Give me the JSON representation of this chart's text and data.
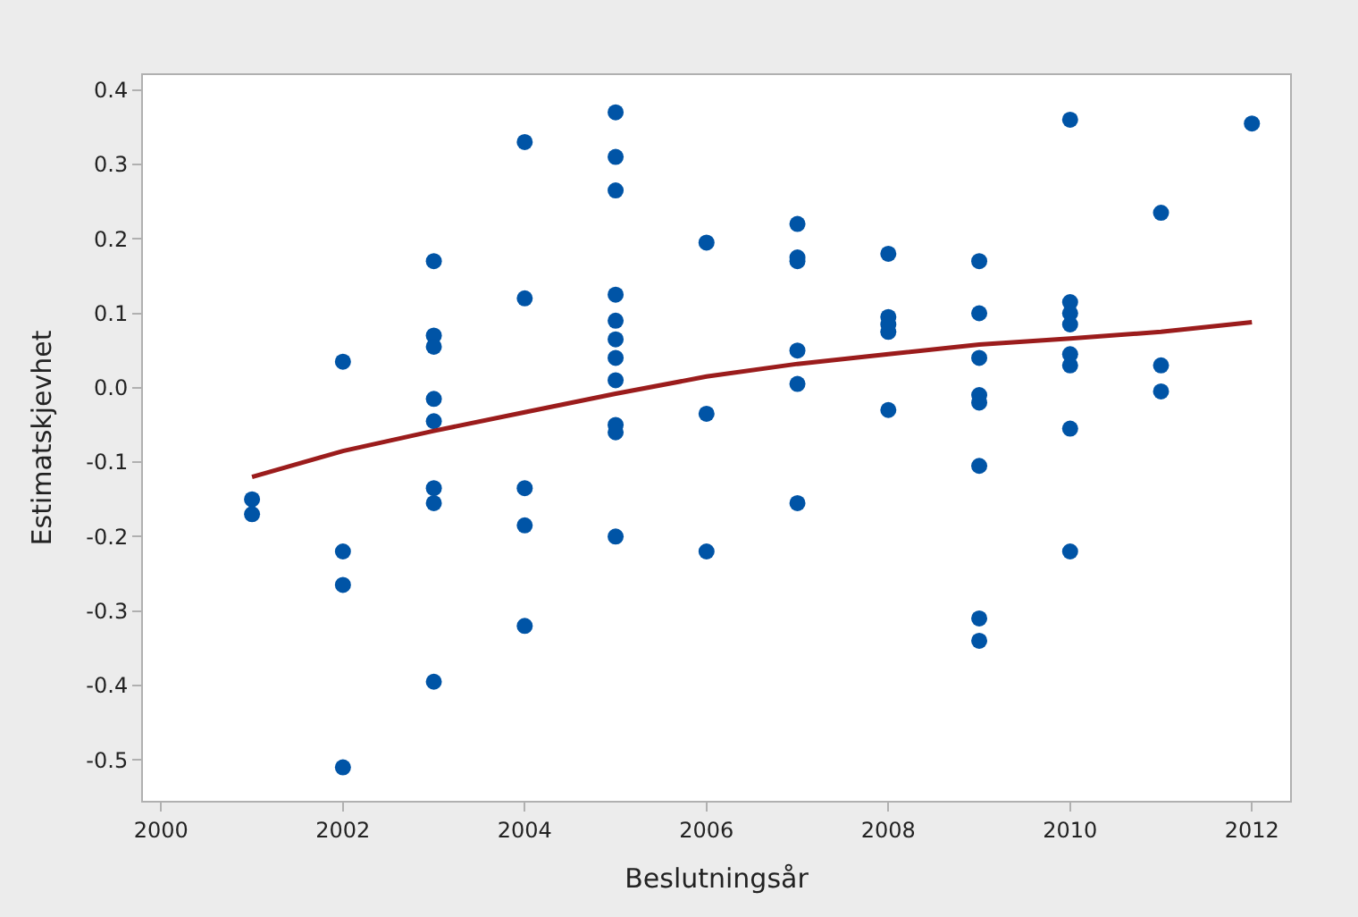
{
  "chart_data": {
    "type": "scatter",
    "xlabel": "Beslutningsår",
    "ylabel": "Estimatskjevhet",
    "xlim": [
      1999.8,
      2012.42
    ],
    "ylim": [
      -0.555,
      0.42
    ],
    "xticks": [
      2000,
      2002,
      2004,
      2006,
      2008,
      2010,
      2012
    ],
    "yticks": [
      -0.5,
      -0.4,
      -0.3,
      -0.2,
      -0.1,
      {
        "value": 0,
        "label": "0.0"
      },
      0.1,
      0.2,
      0.3,
      0.4
    ],
    "marker": "circle",
    "series": [
      {
        "color": "#0054a6",
        "x": [
          2001,
          2001,
          2002,
          2002,
          2002,
          2002,
          2003,
          2003,
          2003,
          2003,
          2003,
          2003,
          2003,
          2003,
          2004,
          2004,
          2004,
          2004,
          2004,
          2005,
          2005,
          2005,
          2005,
          2005,
          2005,
          2005,
          2005,
          2005,
          2005,
          2005,
          2006,
          2006,
          2006,
          2007,
          2007,
          2007,
          2007,
          2007,
          2007,
          2008,
          2008,
          2008,
          2008,
          2008,
          2009,
          2009,
          2009,
          2009,
          2009,
          2009,
          2009,
          2009,
          2010,
          2010,
          2010,
          2010,
          2010,
          2010,
          2010,
          2010,
          2011,
          2011,
          2011,
          2012
        ],
        "values": [
          -0.15,
          -0.17,
          0.035,
          -0.22,
          -0.265,
          -0.51,
          0.17,
          0.07,
          0.055,
          -0.015,
          -0.045,
          -0.135,
          -0.155,
          -0.395,
          0.33,
          0.12,
          -0.135,
          -0.185,
          -0.32,
          0.37,
          0.31,
          0.265,
          0.125,
          0.09,
          0.065,
          0.04,
          0.01,
          -0.05,
          -0.06,
          -0.2,
          0.195,
          -0.035,
          -0.22,
          0.22,
          0.175,
          0.17,
          0.05,
          0.005,
          -0.155,
          0.18,
          0.095,
          0.085,
          0.075,
          -0.03,
          0.17,
          0.1,
          0.04,
          -0.01,
          -0.02,
          -0.105,
          -0.31,
          -0.34,
          0.36,
          0.115,
          0.1,
          0.085,
          0.045,
          0.03,
          -0.055,
          -0.22,
          0.235,
          0.03,
          -0.005,
          0.355
        ]
      },
      {
        "type": "line",
        "color": "#9b1c1c",
        "marker": "none",
        "line_style": "solid",
        "x": [
          2001,
          2002,
          2003,
          2004,
          2005,
          2006,
          2007,
          2008,
          2009,
          2010,
          2011,
          2012
        ],
        "values": [
          -0.12,
          -0.085,
          -0.058,
          -0.033,
          -0.008,
          0.015,
          0.032,
          0.045,
          0.058,
          0.066,
          0.075,
          0.088
        ]
      }
    ]
  }
}
